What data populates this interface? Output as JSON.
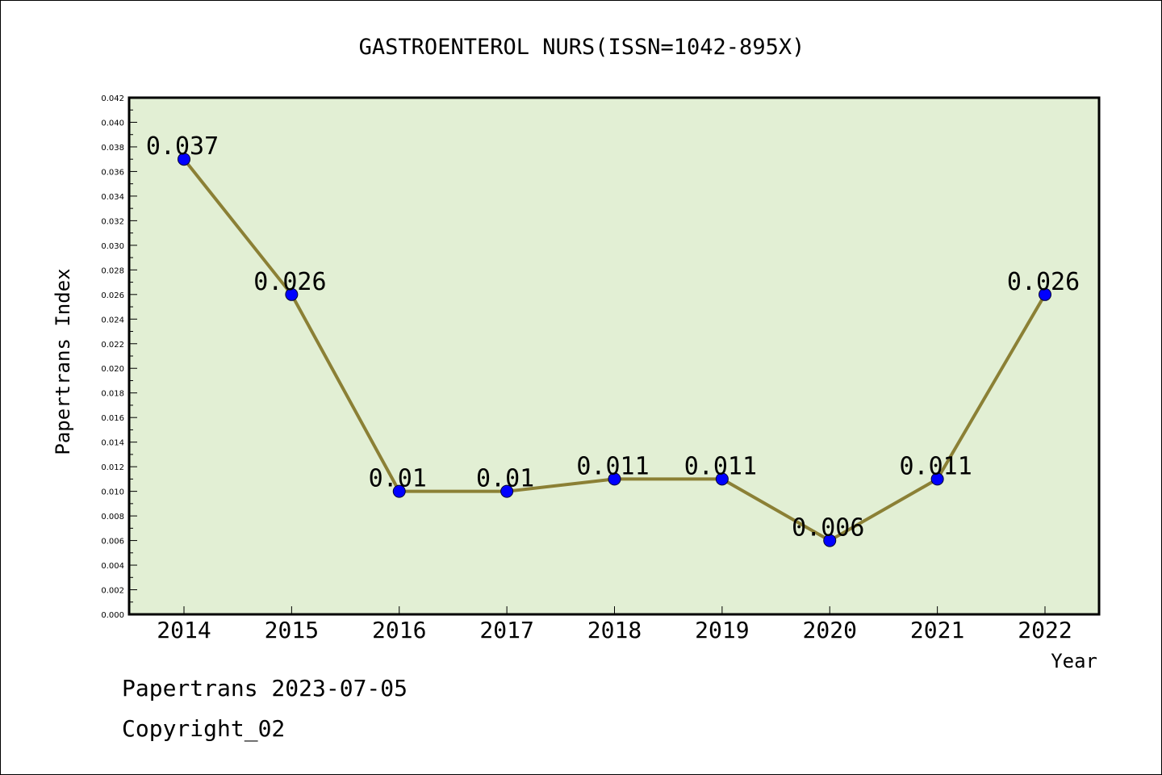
{
  "chart_data": {
    "type": "line",
    "title": "GASTROENTEROL NURS(ISSN=1042-895X)",
    "xlabel": "Year",
    "ylabel": "Papertrans Index",
    "x": [
      "2014",
      "2015",
      "2016",
      "2017",
      "2018",
      "2019",
      "2020",
      "2021",
      "2022"
    ],
    "series": [
      {
        "values": [
          0.037,
          0.026,
          0.01,
          0.01,
          0.011,
          0.011,
          0.006,
          0.011,
          0.026
        ],
        "labels": [
          "0.037",
          "0.026",
          "0.01",
          "0.01",
          "0.011",
          "0.011",
          "0.006",
          "0.011",
          "0.026"
        ]
      }
    ],
    "ylim": [
      0,
      0.042
    ],
    "yticks": [
      "0.000",
      "0.002",
      "0.004",
      "0.006",
      "0.008",
      "0.010",
      "0.012",
      "0.014",
      "0.016",
      "0.018",
      "0.020",
      "0.022",
      "0.024",
      "0.026",
      "0.028",
      "0.030",
      "0.032",
      "0.034",
      "0.036",
      "0.038",
      "0.040",
      "0.042"
    ],
    "grid": false,
    "colors": {
      "plot_background": "#e2efd4",
      "line": "#8b8035",
      "marker": "#0000ff"
    }
  },
  "footer": {
    "date_line": "Papertrans 2023-07-05",
    "copyright": "Copyright_02"
  }
}
